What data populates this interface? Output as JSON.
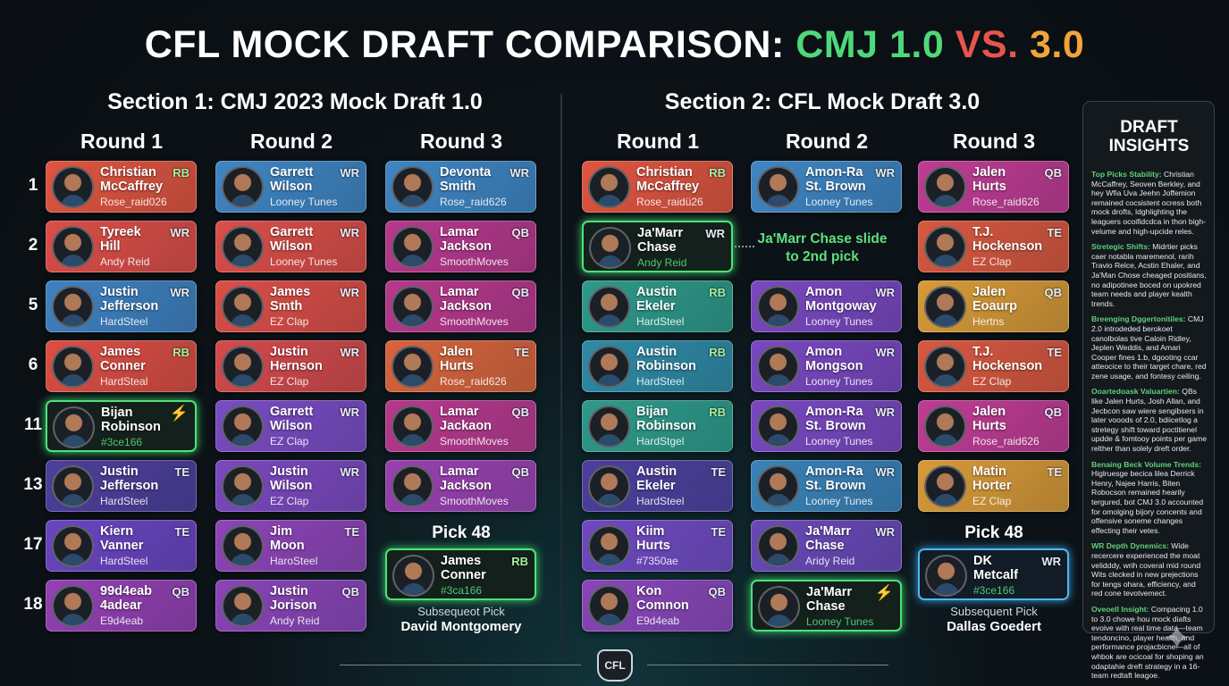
{
  "title": {
    "part1": "CFL MOCK DRAFT COMPARISON:",
    "part2": "CMJ 1.0",
    "part3": "VS.",
    "part4": "3.0"
  },
  "colors": {
    "green": "#4fd87a",
    "red": "#e8554c",
    "orange": "#f2a43e",
    "highlight": "#4fe07a"
  },
  "pick_numbers": [
    "1",
    "2",
    "5",
    "6",
    "11",
    "13",
    "17",
    "18"
  ],
  "sections": [
    {
      "title": "Section 1: CMJ 2023 Mock Draft 1.0",
      "rounds": [
        {
          "label": "Round 1",
          "cards": [
            {
              "n1": "Christian",
              "n2": "McCaffrey",
              "team": "Rose_raid026",
              "pos": "RB",
              "color": "#e05540"
            },
            {
              "n1": "Tyreek",
              "n2": "Hill",
              "team": "Andy Reid",
              "pos": "WR",
              "color": "#dc4e48"
            },
            {
              "n1": "Justin",
              "n2": "Jefferson",
              "team": "HardSteel",
              "pos": "WR",
              "color": "#3f82c2"
            },
            {
              "n1": "James",
              "n2": "Conner",
              "team": "HardSteal",
              "pos": "RB",
              "color": "#dc4e44"
            },
            {
              "n1": "Bijan",
              "n2": "Robinson",
              "team": "#3ce166",
              "pos": "",
              "icon": "lightning-icon",
              "highlight": "green"
            },
            {
              "n1": "Justin",
              "n2": "Jefferson",
              "team": "HardSteel",
              "pos": "TE",
              "color": "#4d3f9c"
            },
            {
              "n1": "Kiern",
              "n2": "Vanner",
              "team": "HardSteel",
              "pos": "TE",
              "color": "#6a45c2"
            },
            {
              "n1": "99d4eab",
              "n2": "4adear",
              "team": "E9d4eab",
              "pos": "QB",
              "color": "#9440b4"
            }
          ]
        },
        {
          "label": "Round 2",
          "cards": [
            {
              "n1": "Garrett",
              "n2": "Wilson",
              "team": "Looney Tunes",
              "pos": "WR",
              "color": "#3f86c4"
            },
            {
              "n1": "Garrett",
              "n2": "Wilson",
              "team": "Looney Tunes",
              "pos": "WR",
              "color": "#dc4e48"
            },
            {
              "n1": "James",
              "n2": "Smth",
              "team": "EZ Clap",
              "pos": "WR",
              "color": "#dc4e48"
            },
            {
              "n1": "Justin",
              "n2": "Hernson",
              "team": "EZ Clap",
              "pos": "WR",
              "color": "#d44a4c"
            },
            {
              "n1": "Garrett",
              "n2": "Wilson",
              "team": "EZ Clap",
              "pos": "WR",
              "color": "#7a4cc4"
            },
            {
              "n1": "Justin",
              "n2": "Wilson",
              "team": "EZ Clap",
              "pos": "WR",
              "color": "#7c48c0"
            },
            {
              "n1": "Jim",
              "n2": "Moon",
              "team": "HaroSteel",
              "pos": "TE",
              "color": "#8e44b8"
            },
            {
              "n1": "Justin",
              "n2": "Jorison",
              "team": "Andy Reid",
              "pos": "QB",
              "color": "#8a44b8"
            }
          ]
        },
        {
          "label": "Round 3",
          "cards": [
            {
              "n1": "Devonta",
              "n2": "Smith",
              "team": "Rose_raid626",
              "pos": "WR",
              "color": "#3f86c4"
            },
            {
              "n1": "Lamar",
              "n2": "Jackson",
              "team": "SmoothMoves",
              "pos": "QB",
              "color": "#b8388e"
            },
            {
              "n1": "Lamar",
              "n2": "Jackson",
              "team": "SmoothMoves",
              "pos": "QB",
              "color": "#b8388e"
            },
            {
              "n1": "Jalen",
              "n2": "Hurts",
              "team": "Rose_raid626",
              "pos": "TE",
              "color": "#d8643c"
            },
            {
              "n1": "Lamar",
              "n2": "Jackaon",
              "team": "SmoothMoves",
              "pos": "QB",
              "color": "#b8388e"
            },
            {
              "n1": "Lamar",
              "n2": "Jackson",
              "team": "SmoothMoves",
              "pos": "QB",
              "color": "#9a40b0"
            }
          ],
          "pick48": {
            "label": "Pick 48",
            "card": {
              "n1": "James",
              "n2": "Conner",
              "team": "#3ca166",
              "pos": "RB",
              "highlight": "green"
            },
            "sub_label": "Subsequeot Pick",
            "sub_name": "David Montgomery"
          }
        }
      ]
    },
    {
      "title": "Section 2: CFL Mock Draft 3.0",
      "rounds": [
        {
          "label": "Round 1",
          "cards": [
            {
              "n1": "Christian",
              "n2": "McCaffrey",
              "team": "Rose_raidü26",
              "pos": "RB",
              "color": "#e05540"
            },
            {
              "n1": "Ja'Marr",
              "n2": "Chase",
              "team": "Andy Reid",
              "pos": "WR",
              "highlight": "green"
            },
            {
              "n1": "Austin",
              "n2": "Ekeler",
              "team": "HardSteel",
              "pos": "RB",
              "color": "#2e9a8a"
            },
            {
              "n1": "Austin",
              "n2": "Robinson",
              "team": "HardSteel",
              "pos": "RB",
              "color": "#2f8aa6"
            },
            {
              "n1": "Bijan",
              "n2": "Robinson",
              "team": "HardStgel",
              "pos": "RB",
              "color": "#2e9a8a"
            },
            {
              "n1": "Austin",
              "n2": "Ekeler",
              "team": "HardSteel",
              "pos": "TE",
              "color": "#4d3f9c"
            },
            {
              "n1": "Kiim",
              "n2": "Hurts",
              "team": "#7350ae",
              "pos": "TE",
              "color": "#7048c0"
            },
            {
              "n1": "Kon",
              "n2": "Comnon",
              "team": "E9d4eab",
              "pos": "QB",
              "color": "#8a44b8"
            }
          ]
        },
        {
          "label": "Round 2",
          "cards": [
            {
              "n1": "Amon-Ra",
              "n2": "St. Brown",
              "team": "Looney Tunes",
              "pos": "WR",
              "color": "#3f86c4"
            },
            null,
            {
              "n1": "Amon",
              "n2": "Montgoway",
              "team": "Looney Tunes",
              "pos": "WR",
              "color": "#7a48c2"
            },
            {
              "n1": "Amon",
              "n2": "Mongson",
              "team": "Looney Tunes",
              "pos": "WR",
              "color": "#7a48c2"
            },
            {
              "n1": "Amon-Ra",
              "n2": "St. Brown",
              "team": "Looney Tunes",
              "pos": "WR",
              "color": "#7a48c2"
            },
            {
              "n1": "Amon-Ra",
              "n2": "St. Brown",
              "team": "Looney Tunes",
              "pos": "WR",
              "color": "#3a82b8"
            },
            {
              "n1": "Ja'Marr",
              "n2": "Chase",
              "team": "Aridy Reid",
              "pos": "WR",
              "color": "#6a48b8"
            },
            {
              "n1": "Ja'Marr",
              "n2": "Chase",
              "team": "Looney Tunes",
              "pos": "",
              "icon": "lightning-icon",
              "highlight": "green"
            }
          ]
        },
        {
          "label": "Round 3",
          "cards": [
            {
              "n1": "Jalen",
              "n2": "Hurts",
              "team": "Rose_raid626",
              "pos": "QB",
              "color": "#c03c94"
            },
            {
              "n1": "T.J.",
              "n2": "Hockenson",
              "team": "EZ Clap",
              "pos": "TE",
              "color": "#d85840"
            },
            {
              "n1": "Jalen",
              "n2": "Eoaurp",
              "team": "Hertns",
              "pos": "QB",
              "color": "#d89a38"
            },
            {
              "n1": "T.J.",
              "n2": "Hockenson",
              "team": "EZ Clap",
              "pos": "TE",
              "color": "#d85840"
            },
            {
              "n1": "Jalen",
              "n2": "Hurts",
              "team": "Rose_raid626",
              "pos": "QB",
              "color": "#c03c94"
            },
            {
              "n1": "Matin",
              "n2": "Horter",
              "team": "EZ Clap",
              "pos": "TE",
              "color": "#d89a38"
            }
          ],
          "pick48": {
            "label": "Pick 48",
            "card": {
              "n1": "DK",
              "n2": "Metcalf",
              "team": "#3ce166",
              "pos": "WR",
              "highlight": "blue"
            },
            "sub_label": "Subsequent Pick",
            "sub_name": "Dallas Goedert"
          }
        }
      ]
    }
  ],
  "annotation": "Ja'Marr Chase slide to 2nd pick",
  "insights": {
    "title": "DRAFT INSIGHTS",
    "items": [
      {
        "h": "Top Picks Stability:",
        "b": "Christian McCaffrey, Seoven Berkley, and hey Wfia Uva Jeehn Joffemion remained cocsistent ocress both mock drofts, ldghlighting the leaguers ocoifidcdca in thon bigh-velume and high-upcide reles."
      },
      {
        "h": "Stretegic Shifts:",
        "b": "Midrtier picks caer notabla maremenol, rarih Travio Relce, Acstin Ehaler, and Ja'Man Chose cheaged positians, no adipotinee boced on upokred team needs and player kealth trends."
      },
      {
        "h": "Breenging Dggertonitiles:",
        "b": "CMJ 2.0 introdeded berokoet canolbolas tive Caloin Ridley, Jeplen Weddis, and Amari Cooper fines 1.b, dgooting ccar atteocice to their target chare, red zene usage, and fontesy ceiling."
      },
      {
        "h": "Ooartedoask Valuartien:",
        "b": "QBs like Jalen Hurts, Josh Allan, and Jecbcon saw wiere sengibsers in later vooods of 2.0, bdiicetlog a stretegy shift toward poctitienel updde & fomtooy points per game relther than solely dreft order."
      },
      {
        "h": "Benaing Beck Volume Trends:",
        "b": "Higlruesge becica lilea Derrick Henry, Najee Harris, Biten Robocson remained hearily tergured, bot CMJ 3.0 accounted for omolging bijory concents and offensive soneme changes effecting their vetes."
      },
      {
        "h": "WR Depth Dynemics:",
        "b": "Wide recercere experienced the moat velidddy, wrih coveral mid round Wits clecked in new prejections for tengs ohara, efficiency, and red cone tevotvemect."
      },
      {
        "h": "Oveoell Insight:",
        "b": "Compacing 1.0 to 3.0 chowe hou mock diafts evoive with real time data—team tendoncino, player health, and performance projacbicne—all of whbok are ocicoal for shoping an odaptahie dreft strategy in a 16-team redtaft leagoe."
      }
    ]
  },
  "footer": {
    "logo": "CFL"
  }
}
